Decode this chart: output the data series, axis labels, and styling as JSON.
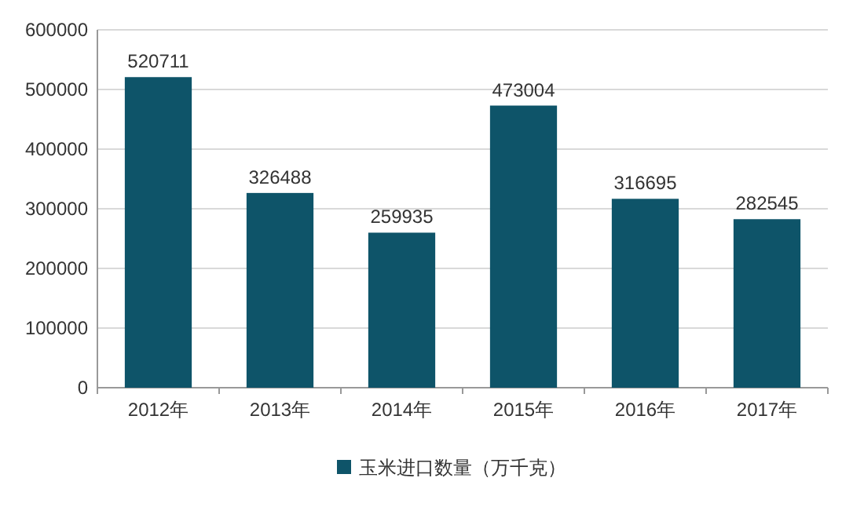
{
  "chart_data": {
    "type": "bar",
    "categories": [
      "2012年",
      "2013年",
      "2014年",
      "2015年",
      "2016年",
      "2017年"
    ],
    "series": [
      {
        "name": "玉米进口数量（万千克）",
        "color": "#0e5469",
        "values": [
          520711,
          326488,
          259935,
          473004,
          316695,
          282545
        ]
      }
    ],
    "ylim": [
      0,
      600000
    ],
    "yticks": [
      0,
      100000,
      200000,
      300000,
      400000,
      500000,
      600000
    ],
    "grid": "y",
    "legend": "bottom",
    "data_labels": true
  }
}
